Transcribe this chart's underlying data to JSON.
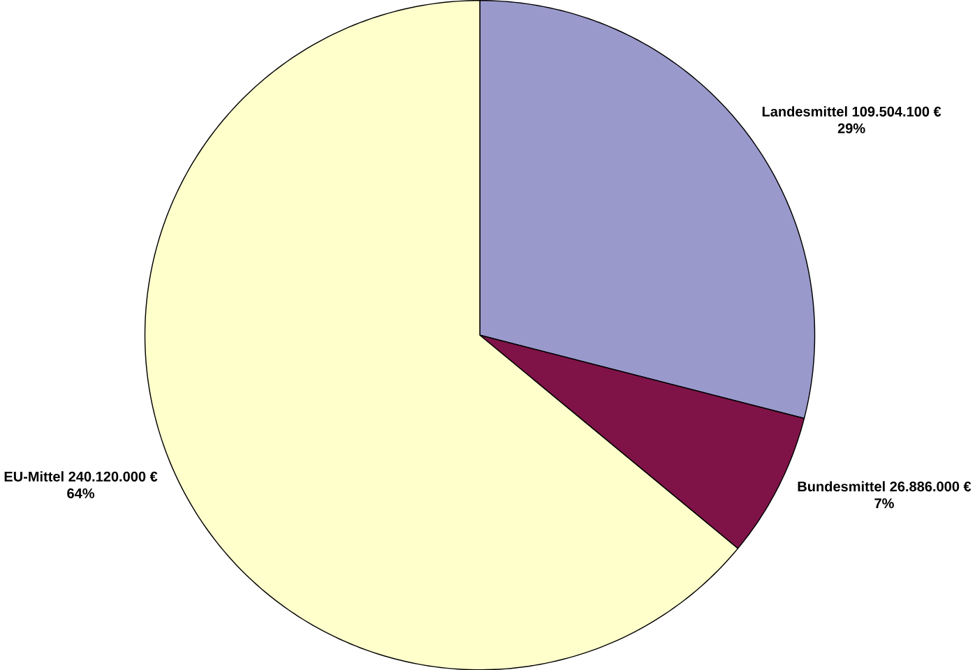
{
  "chart_data": {
    "type": "pie",
    "categories": [
      "Landesmittel 109.504.100 €",
      "Bundesmittel 26.886.000 €",
      "EU-Mittel 240.120.000 €"
    ],
    "values": [
      29,
      7,
      64
    ],
    "value_labels": [
      "29%",
      "7%",
      "64%"
    ],
    "colors": [
      "#9999cc",
      "#7f1348",
      "#ffffcc"
    ]
  }
}
